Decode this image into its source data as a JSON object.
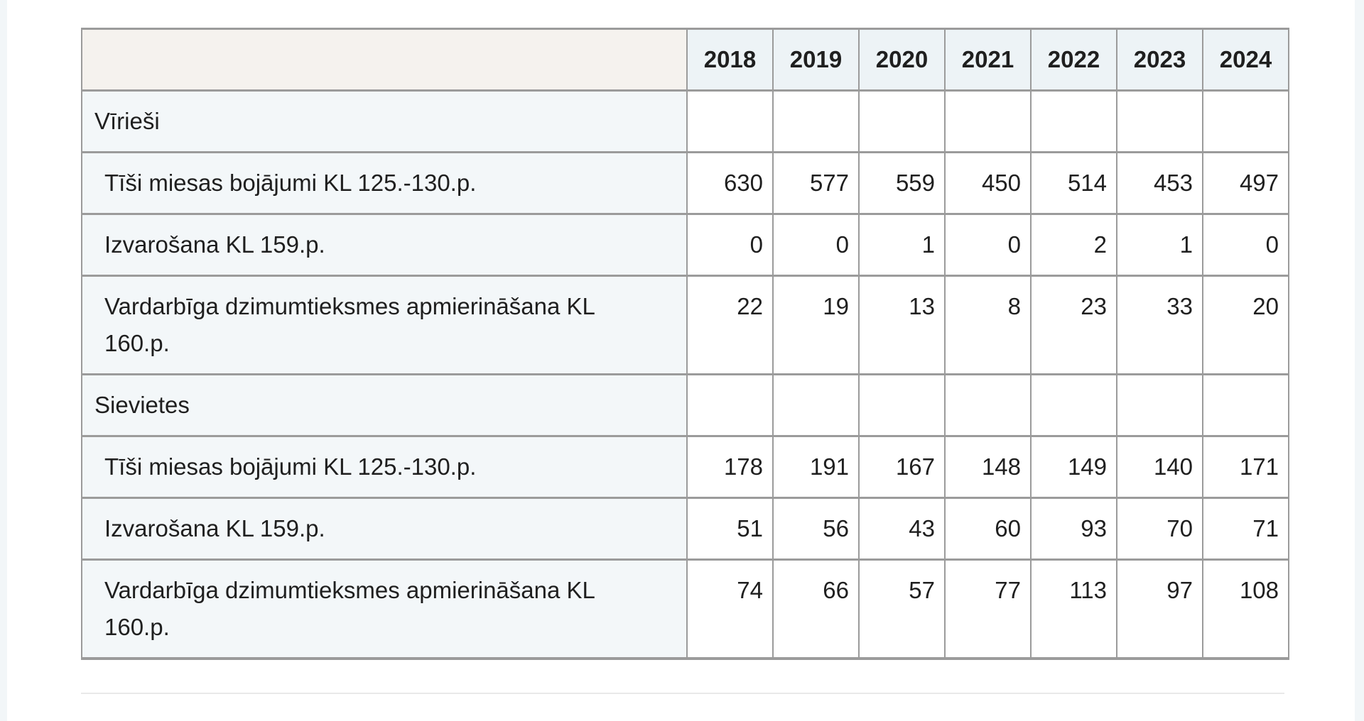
{
  "chart_data": {
    "type": "table",
    "years": [
      "2018",
      "2019",
      "2020",
      "2021",
      "2022",
      "2023",
      "2024"
    ],
    "sections": [
      {
        "label": "Vīrieši",
        "rows": [
          {
            "label": "Tīši miesas bojājumi KL 125.-130.p.",
            "values": [
              630,
              577,
              559,
              450,
              514,
              453,
              497
            ]
          },
          {
            "label": "Izvarošana KL 159.p.",
            "values": [
              0,
              0,
              1,
              0,
              2,
              1,
              0
            ]
          },
          {
            "label": "Vardarbīga dzimumtieksmes apmierināšana KL 160.p.",
            "values": [
              22,
              19,
              13,
              8,
              23,
              33,
              20
            ]
          }
        ]
      },
      {
        "label": "Sievietes",
        "rows": [
          {
            "label": "Tīši miesas bojājumi KL 125.-130.p.",
            "values": [
              178,
              191,
              167,
              148,
              149,
              140,
              171
            ]
          },
          {
            "label": "Izvarošana KL 159.p.",
            "values": [
              51,
              56,
              43,
              60,
              93,
              70,
              71
            ]
          },
          {
            "label": "Vardarbīga dzimumtieksmes apmierināšana KL 160.p.",
            "values": [
              74,
              66,
              57,
              77,
              113,
              97,
              108
            ]
          }
        ]
      }
    ]
  },
  "colors": {
    "border": "#9b9b9b",
    "corner-bg": "#f5f2ee",
    "year-header-bg": "#edf3f6",
    "label-bg": "#f3f7f9",
    "data-bg": "#ffffff",
    "text": "#1f1f1f",
    "edge-strip": "#f2f6f8",
    "divider": "#e9e9e9"
  }
}
